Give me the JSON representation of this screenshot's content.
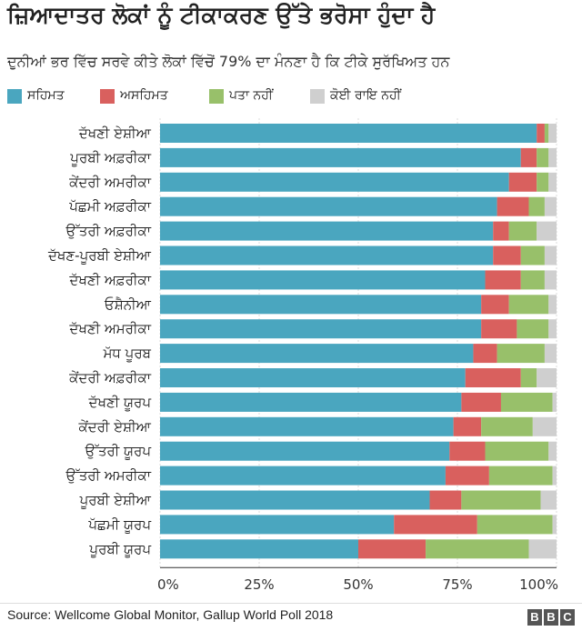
{
  "title": "ਜ਼ਿਆਦਾਤਰ ਲੋਕਾਂ ਨੂੰ ਟੀਕਾਕਰਣ ਉੱਤੇ ਭਰੋਸਾ ਹੁੰਦਾ ਹੈ",
  "subtitle": "ਦੁਨੀਆਂ ਭਰ ਵਿੱਚ ਸਰਵੇ ਕੀਤੇ ਲੋਕਾਂ ਵਿੱਚੋਂ 79% ਦਾ ਮੰਨਣਾ ਹੈ ਕਿ ਟੀਕੇ ਸੁਰੱਖਿਅਤ ਹਨ",
  "source": "Source: Wellcome Global Monitor, Gallup World Poll 2018",
  "logo": [
    "B",
    "B",
    "C"
  ],
  "colors": {
    "agree": "#4aa6bf",
    "disagree": "#d9605e",
    "dont_know": "#98c06a",
    "no_opinion": "#cfcfcf"
  },
  "chart_data": {
    "type": "bar",
    "orientation": "horizontal",
    "stacked": true,
    "categories": [
      "ਦੱਖਣੀ ਏਸ਼ੀਆ",
      "ਪੂਰਬੀ ਅਫ਼ਰੀਕਾ",
      "ਕੇਂਦਰੀ ਅਮਰੀਕਾ",
      "ਪੱਛਮੀ ਅਫ਼ਰੀਕਾ",
      "ਉੱਤਰੀ ਅਫ਼ਰੀਕਾ",
      "ਦੱਖਣ-ਪੂਰਬੀ ਏਸ਼ੀਆ",
      "ਦੱਖਣੀ ਅਫ਼ਰੀਕਾ",
      "ਓਸ਼ੈਨੀਆ",
      "ਦੱਖਣੀ ਅਮਰੀਕਾ",
      "ਮੱਧ ਪੂਰਬ",
      "ਕੇਂਦਰੀ ਅਫ਼ਰੀਕਾ",
      "ਦੱਖਣੀ ਯੂਰਪ",
      "ਕੇਂਦਰੀ ਏਸ਼ੀਆ",
      "ਉੱਤਰੀ ਯੂਰਪ",
      "ਉੱਤਰੀ ਅਮਰੀਕਾ",
      "ਪੂਰਬੀ ਏਸ਼ੀਆ",
      "ਪੱਛਮੀ ਯੂਰਪ",
      "ਪੂਰਬੀ ਯੂਰਪ"
    ],
    "series": [
      {
        "name": "ਸਹਿਮਤ",
        "key": "agree",
        "values": [
          95,
          91,
          88,
          85,
          84,
          84,
          82,
          81,
          81,
          79,
          77,
          76,
          74,
          73,
          72,
          68,
          59,
          50
        ]
      },
      {
        "name": "ਅਸਹਿਮਤ",
        "key": "disagree",
        "values": [
          2,
          4,
          7,
          8,
          4,
          7,
          9,
          7,
          9,
          6,
          14,
          10,
          7,
          9,
          11,
          8,
          21,
          17
        ]
      },
      {
        "name": "ਪਤਾ ਨਹੀਂ",
        "key": "dont_know",
        "values": [
          1,
          3,
          3,
          4,
          7,
          6,
          6,
          10,
          8,
          12,
          4,
          13,
          13,
          16,
          16,
          20,
          19,
          26
        ]
      },
      {
        "name": "ਕੋਈ ਰਾਇ ਨਹੀਂ",
        "key": "no_opinion",
        "values": [
          2,
          2,
          2,
          3,
          5,
          3,
          3,
          2,
          2,
          3,
          5,
          1,
          6,
          2,
          1,
          4,
          1,
          7
        ]
      }
    ],
    "xlim": [
      0,
      100
    ],
    "xticks": [
      "0%",
      "25%",
      "50%",
      "75%",
      "100%"
    ],
    "legend": "top-left"
  }
}
